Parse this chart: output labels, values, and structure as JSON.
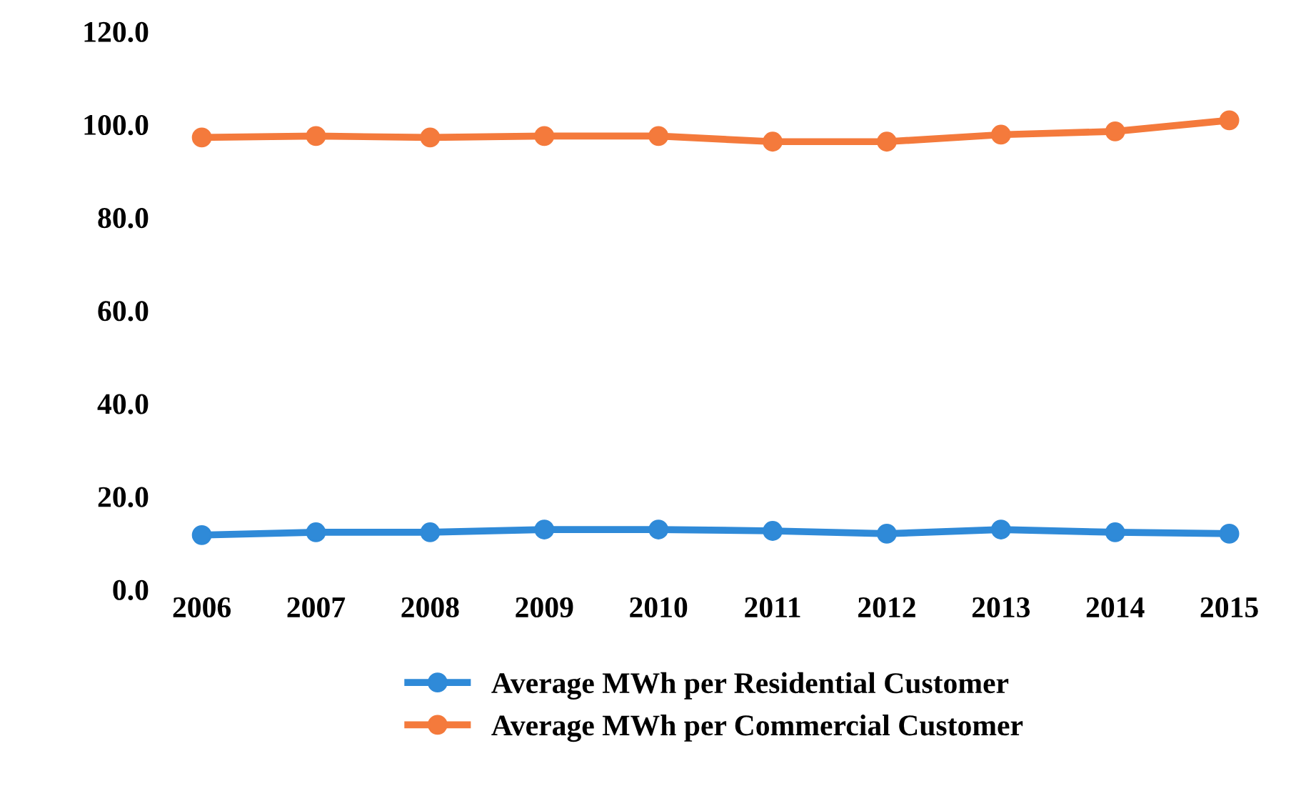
{
  "chart_data": {
    "type": "line",
    "categories": [
      "2006",
      "2007",
      "2008",
      "2009",
      "2010",
      "2011",
      "2012",
      "2013",
      "2014",
      "2015"
    ],
    "series": [
      {
        "name": "Average MWh per Residential Customer",
        "color": "#2f8ad8",
        "values": [
          11.7,
          12.3,
          12.3,
          12.9,
          12.9,
          12.6,
          12.0,
          12.9,
          12.3,
          12.0
        ]
      },
      {
        "name": "Average MWh per Commercial Customer",
        "color": "#f47a3c",
        "values": [
          97.2,
          97.5,
          97.2,
          97.5,
          97.5,
          96.3,
          96.3,
          97.8,
          98.5,
          100.9
        ]
      }
    ],
    "ylim": [
      0,
      120
    ],
    "yticks": [
      {
        "value": 0,
        "label": "0.0"
      },
      {
        "value": 20,
        "label": "20.0"
      },
      {
        "value": 40,
        "label": "40.0"
      },
      {
        "value": 60,
        "label": "60.0"
      },
      {
        "value": 80,
        "label": "80.0"
      },
      {
        "value": 100,
        "label": "100.0"
      },
      {
        "value": 120,
        "label": "120.0"
      }
    ],
    "legend": "bottom",
    "marker": "circle",
    "line_style": "solid"
  }
}
